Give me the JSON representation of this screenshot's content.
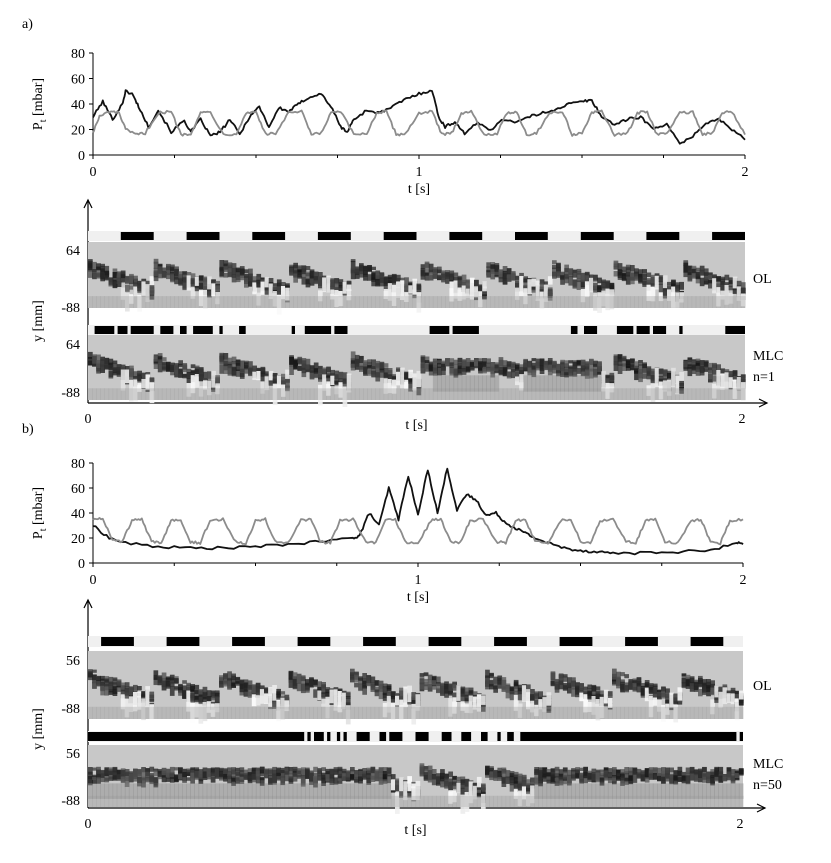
{
  "colors": {
    "series_black": "#111111",
    "series_gray": "#8c8c8c",
    "strip_background": "#c8c8c8"
  },
  "panels": [
    {
      "label": "a)",
      "chart_data": {
        "type": "line",
        "xlabel": "t [s]",
        "ylabel": "P",
        "ylabel_sub": "t",
        "ylabel_unit": " [mbar]",
        "xlim": [
          0,
          2
        ],
        "ylim": [
          0,
          80
        ],
        "xticks": [
          "0",
          "1",
          "2"
        ],
        "yticks": [
          "0",
          "20",
          "40",
          "60",
          "80"
        ],
        "grid": false,
        "series": [
          {
            "color": "black",
            "x": [
              0,
              0.03,
              0.06,
              0.09,
              0.1,
              0.12,
              0.14,
              0.17,
              0.2,
              0.24,
              0.28,
              0.3,
              0.33,
              0.36,
              0.39,
              0.42,
              0.45,
              0.48,
              0.51,
              0.54,
              0.57,
              0.6,
              0.63,
              0.66,
              0.7,
              0.73,
              0.76,
              0.78,
              0.8,
              0.84,
              0.88,
              0.92,
              0.96,
              1.0,
              1.04,
              1.06,
              1.08,
              1.11,
              1.14,
              1.18,
              1.22,
              1.26,
              1.3,
              1.34,
              1.38,
              1.42,
              1.46,
              1.5,
              1.53,
              1.56,
              1.6,
              1.64,
              1.68,
              1.72,
              1.76,
              1.8,
              1.84,
              1.88,
              1.92,
              1.96,
              2.0
            ],
            "y": [
              30,
              42,
              28,
              40,
              50,
              48,
              38,
              22,
              35,
              18,
              27,
              18,
              28,
              15,
              18,
              28,
              16,
              30,
              38,
              22,
              37,
              34,
              40,
              45,
              48,
              38,
              22,
              18,
              28,
              35,
              33,
              38,
              44,
              48,
              51,
              30,
              22,
              26,
              17,
              25,
              20,
              28,
              26,
              30,
              33,
              36,
              40,
              42,
              43,
              30,
              24,
              28,
              30,
              20,
              25,
              8,
              15,
              25,
              28,
              20,
              12
            ]
          },
          {
            "color": "gray",
            "x": [
              0,
              0.02,
              0.05,
              0.08,
              0.1,
              0.13,
              0.16,
              0.2,
              0.24,
              0.27,
              0.3,
              0.33,
              0.36,
              0.4,
              0.44,
              0.47,
              0.5,
              0.53,
              0.56,
              0.6,
              0.64,
              0.67,
              0.7,
              0.73,
              0.76,
              0.8,
              0.84,
              0.87,
              0.9,
              0.93,
              0.96,
              1.0,
              1.04,
              1.07,
              1.1,
              1.13,
              1.16,
              1.2,
              1.24,
              1.27,
              1.3,
              1.33,
              1.36,
              1.4,
              1.44,
              1.47,
              1.5,
              1.53,
              1.56,
              1.6,
              1.64,
              1.67,
              1.7,
              1.73,
              1.76,
              1.8,
              1.84,
              1.87,
              1.9,
              1.93,
              1.96,
              2.0
            ],
            "y": [
              18,
              30,
              34,
              33,
              20,
              16,
              17,
              33,
              34,
              16,
              17,
              33,
              34,
              16,
              17,
              33,
              34,
              16,
              17,
              33,
              34,
              16,
              17,
              33,
              34,
              16,
              17,
              33,
              34,
              16,
              17,
              33,
              34,
              16,
              17,
              33,
              34,
              16,
              17,
              33,
              34,
              16,
              17,
              33,
              34,
              16,
              17,
              33,
              34,
              16,
              17,
              33,
              34,
              16,
              17,
              33,
              34,
              16,
              17,
              33,
              34,
              16
            ]
          }
        ]
      },
      "strips": {
        "xlabel": "t [s]",
        "ylabel": "y [mm]",
        "xticks": [
          "0",
          "2"
        ],
        "rows": [
          {
            "label": "OL",
            "label2": "",
            "ytop": "64",
            "ybot": "-88",
            "bar_segments": [
              [
                0.05,
                0.1
              ],
              [
                0.15,
                0.2
              ],
              [
                0.25,
                0.3
              ],
              [
                0.35,
                0.4
              ],
              [
                0.45,
                0.5
              ],
              [
                0.55,
                0.6
              ],
              [
                0.65,
                0.7
              ],
              [
                0.75,
                0.8
              ],
              [
                0.85,
                0.9
              ],
              [
                0.95,
                1.0
              ]
            ],
            "flow": "periodic",
            "period": 0.2
          },
          {
            "label": "MLC",
            "label2": "n=1",
            "ytop": "64",
            "ybot": "-88",
            "bar_segments": [
              [
                0.01,
                0.04
              ],
              [
                0.045,
                0.06
              ],
              [
                0.065,
                0.1
              ],
              [
                0.11,
                0.13
              ],
              [
                0.14,
                0.15
              ],
              [
                0.16,
                0.19
              ],
              [
                0.2,
                0.205
              ],
              [
                0.23,
                0.24
              ],
              [
                0.31,
                0.315
              ],
              [
                0.33,
                0.37
              ],
              [
                0.375,
                0.395
              ],
              [
                0.52,
                0.55
              ],
              [
                0.555,
                0.595
              ],
              [
                0.735,
                0.745
              ],
              [
                0.755,
                0.775
              ],
              [
                0.805,
                0.83
              ],
              [
                0.835,
                0.855
              ],
              [
                0.86,
                0.88
              ],
              [
                0.9,
                0.905
              ],
              [
                0.97,
                1.0
              ]
            ],
            "flow": "mlc1",
            "period": 0.2
          }
        ]
      }
    },
    {
      "label": "b)",
      "chart_data": {
        "type": "line",
        "xlabel": "t [s]",
        "ylabel": "P",
        "ylabel_sub": "t",
        "ylabel_unit": " [mbar]",
        "xlim": [
          0,
          2
        ],
        "ylim": [
          0,
          80
        ],
        "xticks": [
          "0",
          "1",
          "2"
        ],
        "yticks": [
          "0",
          "20",
          "40",
          "60",
          "80"
        ],
        "grid": false,
        "series": [
          {
            "color": "black",
            "x": [
              0,
              0.05,
              0.1,
              0.2,
              0.3,
              0.4,
              0.5,
              0.6,
              0.7,
              0.8,
              0.82,
              0.85,
              0.88,
              0.91,
              0.94,
              0.97,
              1.0,
              1.03,
              1.06,
              1.09,
              1.12,
              1.15,
              1.18,
              1.21,
              1.24,
              1.27,
              1.3,
              1.33,
              1.36,
              1.4,
              1.45,
              1.5,
              1.55,
              1.6,
              1.7,
              1.8,
              1.9,
              1.98,
              2.0
            ],
            "y": [
              30,
              20,
              16,
              13,
              12,
              12,
              13,
              15,
              17,
              20,
              22,
              40,
              30,
              60,
              35,
              70,
              38,
              75,
              40,
              76,
              42,
              55,
              50,
              38,
              40,
              32,
              28,
              24,
              20,
              16,
              12,
              10,
              9,
              8,
              8,
              9,
              10,
              16,
              15
            ]
          },
          {
            "color": "gray",
            "x": [
              0,
              0.03,
              0.06,
              0.09,
              0.12,
              0.15,
              0.18,
              0.21,
              0.24,
              0.27,
              0.3,
              0.33,
              0.36,
              0.4,
              0.44,
              0.47,
              0.5,
              0.53,
              0.56,
              0.6,
              0.64,
              0.67,
              0.7,
              0.73,
              0.76,
              0.8,
              0.84,
              0.87,
              0.9,
              0.93,
              0.96,
              1.0,
              1.04,
              1.07,
              1.1,
              1.13,
              1.16,
              1.2,
              1.24,
              1.27,
              1.3,
              1.33,
              1.36,
              1.4,
              1.44,
              1.47,
              1.5,
              1.53,
              1.56,
              1.6,
              1.64,
              1.67,
              1.7,
              1.73,
              1.76,
              1.8,
              1.84,
              1.87,
              1.9,
              1.93,
              1.96,
              2.0
            ],
            "y": [
              35,
              36,
              18,
              17,
              34,
              35,
              17,
              16,
              34,
              35,
              17,
              16,
              34,
              35,
              17,
              16,
              34,
              35,
              17,
              16,
              34,
              35,
              17,
              16,
              34,
              35,
              17,
              16,
              34,
              35,
              17,
              16,
              34,
              35,
              17,
              16,
              34,
              35,
              17,
              16,
              34,
              35,
              17,
              16,
              34,
              35,
              17,
              16,
              34,
              35,
              17,
              16,
              34,
              35,
              17,
              16,
              34,
              35,
              17,
              16,
              34,
              35
            ]
          }
        ]
      },
      "strips": {
        "xlabel": "t [s]",
        "ylabel": "y [mm]",
        "xticks": [
          "0",
          "2"
        ],
        "rows": [
          {
            "label": "OL",
            "label2": "",
            "ytop": "56",
            "ybot": "-88",
            "bar_segments": [
              [
                0.02,
                0.07
              ],
              [
                0.12,
                0.17
              ],
              [
                0.22,
                0.27
              ],
              [
                0.32,
                0.37
              ],
              [
                0.42,
                0.47
              ],
              [
                0.52,
                0.57
              ],
              [
                0.62,
                0.67
              ],
              [
                0.72,
                0.77
              ],
              [
                0.82,
                0.87
              ],
              [
                0.92,
                0.97
              ]
            ],
            "flow": "periodic",
            "period": 0.2
          },
          {
            "label": "MLC",
            "label2": "n=50",
            "ytop": "56",
            "ybot": "-88",
            "bar_segments": [
              [
                0.0,
                0.33
              ],
              [
                0.335,
                0.34
              ],
              [
                0.345,
                0.36
              ],
              [
                0.365,
                0.37
              ],
              [
                0.38,
                0.385
              ],
              [
                0.39,
                0.395
              ],
              [
                0.41,
                0.43
              ],
              [
                0.445,
                0.455
              ],
              [
                0.46,
                0.48
              ],
              [
                0.5,
                0.52
              ],
              [
                0.54,
                0.555
              ],
              [
                0.57,
                0.585
              ],
              [
                0.6,
                0.61
              ],
              [
                0.625,
                0.63
              ],
              [
                0.64,
                0.65
              ],
              [
                0.66,
                0.99
              ],
              [
                0.995,
                1.0
              ]
            ],
            "flow": "mlc50",
            "period": 0.2
          }
        ]
      }
    }
  ]
}
